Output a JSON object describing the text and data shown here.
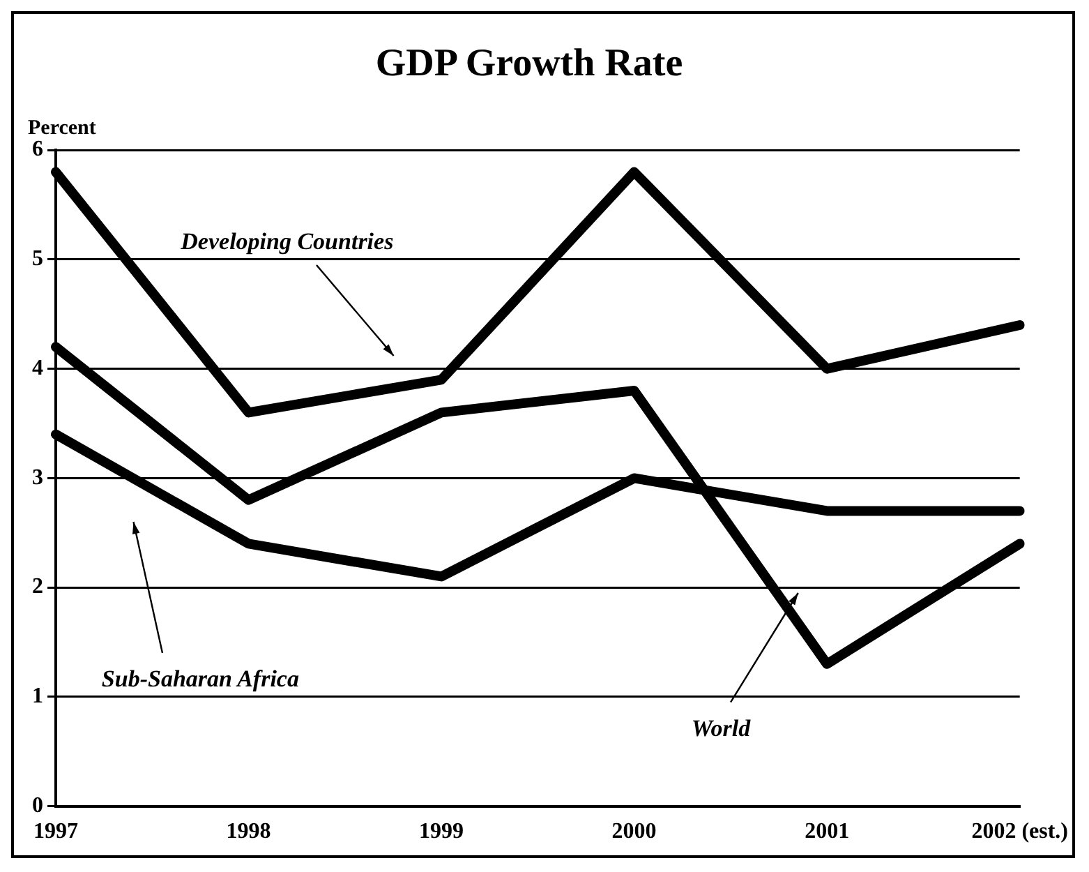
{
  "chart_data": {
    "type": "line",
    "title": "GDP Growth Rate",
    "ylabel": "Percent",
    "categories": [
      "1997",
      "1998",
      "1999",
      "2000",
      "2001",
      "2002 (est.)"
    ],
    "series": [
      {
        "name": "Developing Countries",
        "color": "#000000",
        "values": [
          5.8,
          3.6,
          3.9,
          5.8,
          4.0,
          4.4
        ]
      },
      {
        "name": "World",
        "color": "#000000",
        "values": [
          4.2,
          2.8,
          3.6,
          3.8,
          1.3,
          2.4
        ]
      },
      {
        "name": "Sub-Saharan Africa",
        "color": "#000000",
        "values": [
          3.4,
          2.4,
          2.1,
          3.0,
          2.7,
          2.7
        ]
      }
    ],
    "ylim": [
      0,
      6
    ],
    "yticks": [
      0,
      1,
      2,
      3,
      4,
      5,
      6
    ],
    "grid": "y",
    "legend": false,
    "marker": "none",
    "line_style": "solid"
  }
}
